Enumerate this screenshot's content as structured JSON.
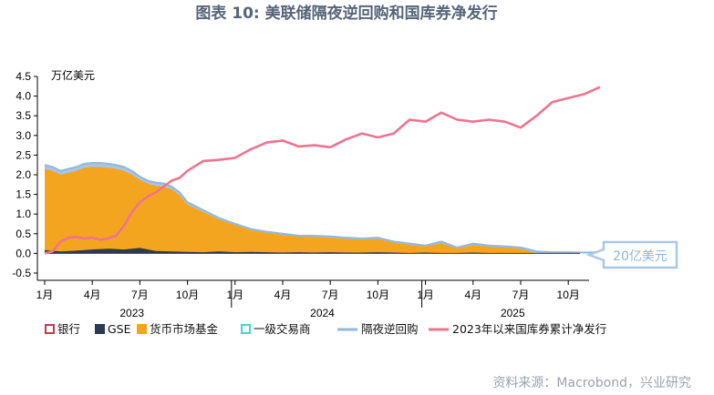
{
  "chart_data": {
    "type": "area",
    "title": "图表 10: 美联储隔夜逆回购和国库券净发行",
    "ylabel": "万亿美元",
    "ylim": [
      -0.5,
      4.5
    ],
    "yticks": [
      "4.5",
      "4.0",
      "3.5",
      "3.0",
      "2.5",
      "2.0",
      "1.5",
      "1.0",
      "0.5",
      "0.0",
      "-0.5"
    ],
    "xticks": [
      "1月",
      "4月",
      "7月",
      "10月",
      "1月",
      "4月",
      "7月",
      "10月",
      "1月",
      "4月",
      "7月",
      "10月"
    ],
    "years": [
      "2023",
      "2024",
      "2025"
    ],
    "annotation": "20亿美元",
    "legend": [
      "银行",
      "GSE",
      "货币市场基金",
      "一级交易商",
      "隔夜逆回购",
      "2023年以来国库券累计净发行"
    ],
    "source": "资料来源：Macrobond，兴业研究",
    "x_unit": "months since Jan 2023",
    "series": [
      {
        "name": "隔夜逆回购",
        "color": "#92b8dd",
        "x": [
          0,
          0.5,
          1,
          1.5,
          2,
          2.5,
          3,
          3.5,
          4,
          4.5,
          5,
          5.5,
          6,
          6.5,
          7,
          7.5,
          8,
          8.5,
          9,
          10,
          11,
          12,
          13,
          14,
          15,
          16,
          17,
          18,
          19,
          20,
          21,
          22,
          23,
          24,
          25,
          26,
          27,
          28,
          29,
          30,
          31,
          32,
          33,
          34,
          35,
          36
        ],
        "values": [
          2.25,
          2.2,
          2.1,
          2.15,
          2.2,
          2.28,
          2.3,
          2.3,
          2.28,
          2.25,
          2.2,
          2.1,
          1.95,
          1.85,
          1.8,
          1.78,
          1.7,
          1.55,
          1.3,
          1.1,
          0.9,
          0.75,
          0.62,
          0.55,
          0.5,
          0.45,
          0.45,
          0.43,
          0.4,
          0.38,
          0.4,
          0.3,
          0.25,
          0.2,
          0.3,
          0.15,
          0.25,
          0.2,
          0.18,
          0.15,
          0.05,
          0.03,
          0.03,
          0.02,
          0.03,
          0.02
        ]
      },
      {
        "name": "货币市场基金",
        "color": "#f4a51f",
        "x": [
          0,
          0.5,
          1,
          1.5,
          2,
          2.5,
          3,
          3.5,
          4,
          4.5,
          5,
          5.5,
          6,
          6.5,
          7,
          7.5,
          8,
          8.5,
          9,
          10,
          11,
          12,
          13,
          14,
          15,
          16,
          17,
          18,
          19,
          20,
          21,
          22,
          23,
          24,
          25,
          26,
          27,
          28,
          29,
          30,
          31,
          32,
          33,
          34,
          35,
          36
        ],
        "values": [
          2.15,
          2.1,
          2.0,
          2.05,
          2.1,
          2.18,
          2.2,
          2.2,
          2.18,
          2.15,
          2.1,
          2.0,
          1.87,
          1.77,
          1.72,
          1.7,
          1.63,
          1.48,
          1.24,
          1.05,
          0.86,
          0.72,
          0.59,
          0.52,
          0.47,
          0.43,
          0.42,
          0.4,
          0.37,
          0.35,
          0.37,
          0.27,
          0.22,
          0.18,
          0.26,
          0.12,
          0.21,
          0.17,
          0.15,
          0.12,
          0.0,
          0.0,
          0.0,
          0.0,
          0.0,
          0.0
        ]
      },
      {
        "name": "GSE",
        "color": "#2d3a54",
        "x": [
          0,
          1,
          2,
          3,
          4,
          5,
          6,
          7,
          8,
          9,
          10,
          11,
          12,
          13,
          14,
          15,
          16,
          17,
          18,
          19,
          20,
          21,
          22,
          23,
          24,
          25,
          26,
          27,
          28,
          29,
          30
        ],
        "values": [
          0.08,
          0.05,
          0.07,
          0.1,
          0.12,
          0.1,
          0.14,
          0.06,
          0.05,
          0.04,
          0.03,
          0.05,
          0.03,
          0.04,
          0.03,
          0.02,
          0.03,
          0.02,
          0.03,
          0.02,
          0.02,
          0.03,
          0.02,
          0.01,
          0.02,
          0.01,
          0.01,
          0.02,
          0.01,
          0.01,
          0.0
        ]
      },
      {
        "name": "2023年以来国库券累计净发行",
        "color": "#f0738e",
        "x": [
          0,
          0.5,
          1,
          1.5,
          2,
          2.5,
          3,
          3.5,
          4,
          4.5,
          5,
          5.5,
          6,
          6.5,
          7,
          7.5,
          8,
          8.5,
          9,
          10,
          11,
          12,
          13,
          14,
          15,
          16,
          17,
          18,
          19,
          20,
          21,
          22,
          23,
          24,
          25,
          26,
          27,
          28,
          29,
          30,
          31,
          32,
          33,
          34,
          35
        ],
        "values": [
          0.0,
          0.05,
          0.3,
          0.4,
          0.42,
          0.38,
          0.4,
          0.35,
          0.38,
          0.45,
          0.7,
          1.05,
          1.3,
          1.45,
          1.55,
          1.7,
          1.85,
          1.92,
          2.1,
          2.35,
          2.38,
          2.43,
          2.65,
          2.82,
          2.87,
          2.72,
          2.75,
          2.7,
          2.9,
          3.05,
          2.95,
          3.05,
          3.4,
          3.35,
          3.58,
          3.4,
          3.35,
          3.4,
          3.35,
          3.2,
          3.5,
          3.85,
          3.95,
          4.05,
          4.23
        ]
      }
    ]
  }
}
